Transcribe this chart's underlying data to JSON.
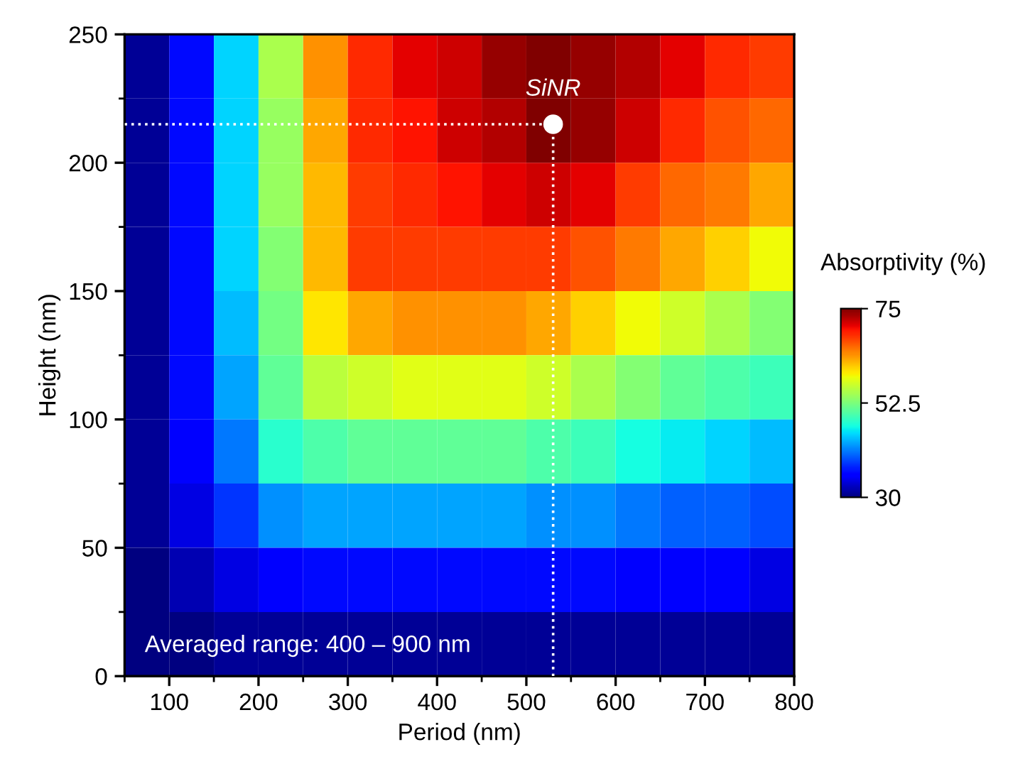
{
  "chart_data": {
    "type": "heatmap",
    "xlabel": "Period (nm)",
    "ylabel": "Height (nm)",
    "clabel": "Absorptivity (%)",
    "x": [
      75,
      125,
      175,
      225,
      275,
      325,
      375,
      425,
      475,
      525,
      575,
      625,
      675,
      725,
      775
    ],
    "y": [
      237.5,
      212.5,
      187.5,
      162.5,
      137.5,
      112.5,
      87.5,
      62.5,
      37.5,
      12.5
    ],
    "cells": [
      [
        31,
        36,
        45,
        55,
        64,
        69,
        71,
        72,
        74,
        75,
        74,
        73,
        71,
        69,
        68
      ],
      [
        31,
        36,
        45,
        54,
        63,
        69,
        70,
        72,
        73,
        75,
        74,
        72,
        69,
        67,
        66
      ],
      [
        31,
        36,
        45,
        54,
        62,
        68,
        69,
        70,
        71,
        72,
        71,
        68,
        66,
        65,
        63
      ],
      [
        31,
        36,
        45,
        53,
        62,
        68,
        68,
        68,
        68,
        68,
        67,
        65,
        63,
        61,
        59
      ],
      [
        31,
        36,
        44,
        52,
        60,
        63,
        64,
        64,
        64,
        63,
        61,
        59,
        57,
        55,
        53
      ],
      [
        31,
        36,
        43,
        51,
        56,
        57,
        58,
        58,
        58,
        57,
        55,
        53,
        51,
        50,
        49
      ],
      [
        31,
        35,
        41,
        48,
        50,
        51,
        51,
        51,
        51,
        50,
        49,
        47,
        46,
        45,
        44
      ],
      [
        31,
        34,
        38,
        42,
        43,
        43,
        43,
        43,
        43,
        42,
        42,
        41,
        40,
        40,
        39
      ],
      [
        30,
        32,
        34,
        35,
        36,
        36,
        36,
        36,
        36,
        36,
        36,
        35,
        35,
        35,
        34
      ],
      [
        30,
        30,
        31,
        31,
        31,
        31,
        31,
        31,
        31,
        31,
        31,
        31,
        31,
        31,
        31
      ]
    ],
    "clim": [
      30,
      75
    ],
    "cticks": [
      30,
      52.5,
      75
    ],
    "xlim": [
      50,
      800
    ],
    "ylim": [
      0,
      250
    ],
    "xticks": [
      {
        "value": 50,
        "label": null
      },
      100,
      {
        "value": 150,
        "label": null
      },
      200,
      {
        "value": 250,
        "label": null
      },
      300,
      {
        "value": 350,
        "label": null
      },
      400,
      {
        "value": 450,
        "label": null
      },
      500,
      {
        "value": 550,
        "label": null
      },
      600,
      {
        "value": 650,
        "label": null
      },
      700,
      {
        "value": 750,
        "label": null
      },
      800
    ],
    "yticks": [
      0,
      {
        "value": 25,
        "label": null
      },
      50,
      {
        "value": 75,
        "label": null
      },
      100,
      {
        "value": 125,
        "label": null
      },
      150,
      {
        "value": 175,
        "label": null
      },
      200,
      {
        "value": 225,
        "label": null
      },
      250
    ],
    "series": [
      {
        "type": "scatter",
        "x": [
          530
        ],
        "values": [
          215
        ],
        "color": "#ffffff"
      }
    ],
    "ref_lines": [
      {
        "axis": "x",
        "value": 530,
        "color": "#ffffff",
        "line_style": "dotted"
      },
      {
        "axis": "y",
        "value": 215,
        "color": "#ffffff",
        "line_style": "dotted"
      }
    ],
    "annotations": [
      {
        "text": "SiNR",
        "x": 530,
        "y": 215
      },
      "Averaged range: 400 – 900 nm"
    ],
    "marker": "circle",
    "grid": false
  }
}
